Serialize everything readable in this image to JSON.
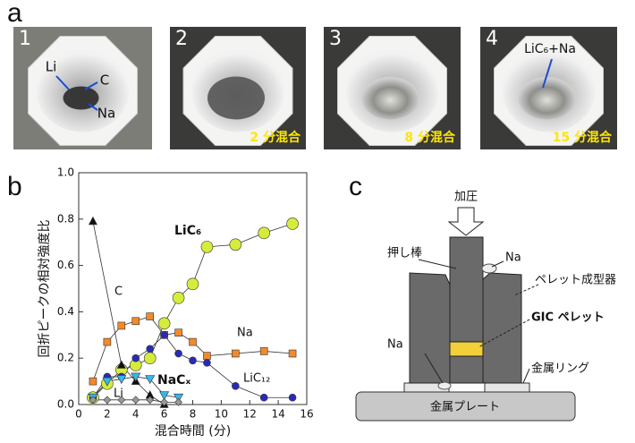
{
  "panel_labels": [
    "a",
    "b",
    "c"
  ],
  "photos": [
    {
      "number": "1",
      "labels": [
        "Li",
        "C",
        "Na"
      ]
    },
    {
      "number": "2",
      "caption": "2 分混合"
    },
    {
      "number": "3",
      "caption": "8 分混合"
    },
    {
      "number": "4",
      "caption": "15 分混合",
      "labels": [
        "LiC₆+Na"
      ]
    }
  ],
  "chart_data": {
    "type": "line",
    "xlabel": "混合時間 (分)",
    "ylabel": "回折ピークの相対強度比",
    "xlim": [
      0,
      16
    ],
    "xticks": [
      0,
      2,
      4,
      6,
      8,
      10,
      12,
      14,
      16
    ],
    "ylim": [
      0,
      1
    ],
    "yticks": [
      {
        "value": 0,
        "label": "0.0"
      },
      0.2,
      0.4,
      0.6,
      0.8,
      {
        "value": 1,
        "label": "1.0"
      }
    ],
    "series": [
      {
        "name": "LiC₆",
        "color": "#d6ec3c",
        "marker": "circle",
        "x": [
          1,
          2,
          3,
          4,
          5,
          6,
          7,
          8,
          9,
          11,
          13,
          15
        ],
        "values": [
          0.03,
          0.09,
          0.15,
          0.17,
          0.2,
          0.35,
          0.46,
          0.52,
          0.68,
          0.69,
          0.74,
          0.78
        ]
      },
      {
        "name": "Na",
        "color": "#f08a2c",
        "marker": "square",
        "x": [
          1,
          2,
          3,
          4,
          5,
          6,
          7,
          8,
          9,
          11,
          13,
          15
        ],
        "values": [
          0.1,
          0.27,
          0.34,
          0.36,
          0.38,
          0.3,
          0.31,
          0.27,
          0.21,
          0.22,
          0.23,
          0.22
        ]
      },
      {
        "name": "C",
        "color": "#111111",
        "marker": "triangle",
        "x": [
          1,
          3,
          4,
          5,
          6
        ],
        "values": [
          0.79,
          0.17,
          0.1,
          0.04,
          0.0
        ]
      },
      {
        "name": "LiC₁₂",
        "color": "#2a2ab8",
        "marker": "circle",
        "x": [
          1,
          2,
          3,
          4,
          5,
          6,
          7,
          8,
          9,
          11,
          13,
          15
        ],
        "values": [
          0.03,
          0.12,
          0.12,
          0.2,
          0.24,
          0.3,
          0.22,
          0.19,
          0.18,
          0.08,
          0.03,
          0.03
        ]
      },
      {
        "name": "NaCₓ",
        "color": "#35b8e8",
        "marker": "triangle-down",
        "x": [
          1,
          2,
          3,
          4,
          5,
          6,
          7
        ],
        "values": [
          0.03,
          0.1,
          0.11,
          0.12,
          0.11,
          0.04,
          0.03
        ]
      },
      {
        "name": "Li",
        "color": "#999999",
        "marker": "diamond",
        "x": [
          1,
          2,
          3,
          4,
          5,
          6,
          7
        ],
        "values": [
          0.02,
          0.02,
          0.02,
          0.02,
          0.02,
          0.01,
          0.01
        ]
      }
    ]
  },
  "diagram": {
    "pressure": "加圧",
    "rod": "押し棒",
    "na_top": "Na",
    "mold": "ペレット成型器",
    "pellet": "GIC ペレット",
    "na_bottom": "Na",
    "ring": "金属リング",
    "plate": "金属プレート"
  }
}
